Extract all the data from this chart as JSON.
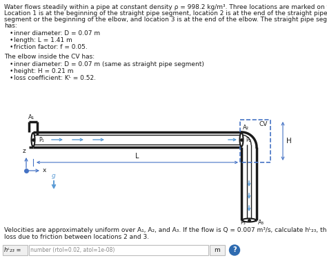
{
  "line1": "Water flows steadily within a pipe at constant density ρ = 998.2 kg/m³. Three locations are marked on the pipe.",
  "line2": "Location 1 is at the beginning of the straight pipe segment, location 2 is at the end of the straight pipe",
  "line3": "segment or the beginning of the elbow, and location 3 is at the end of the elbow. The straight pipe segment",
  "line4": "has:",
  "bullet1": [
    "inner diameter: D = 0.07 m",
    "length: L = 1.41 m",
    "friction factor: f = 0.05."
  ],
  "elbow_header": "The elbow inside the CV has:",
  "bullet2": [
    "inner diameter: D = 0.07 m (same as straight pipe segment)",
    "height: H = 0.21 m",
    "loss coefficient: Kᴸ = 0.52."
  ],
  "bottom_line1": "Velocities are approximately uniform over A₁, A₂, and A₃. If the flow is Q = 0.007 m³/s, calculate hᴸ₂₃, the head",
  "bottom_line2": "loss due to friction between locations 2 and 3.",
  "answer_placeholder": "number (rtol=0.02, atol=1e-08)",
  "answer_unit": "m",
  "bg_color": "#ffffff",
  "text_color": "#1a1a1a",
  "pipe_color": "#1a1a1a",
  "arrow_color": "#5b9bd5",
  "cv_dash_color": "#4472c4",
  "dim_color": "#4472c4"
}
